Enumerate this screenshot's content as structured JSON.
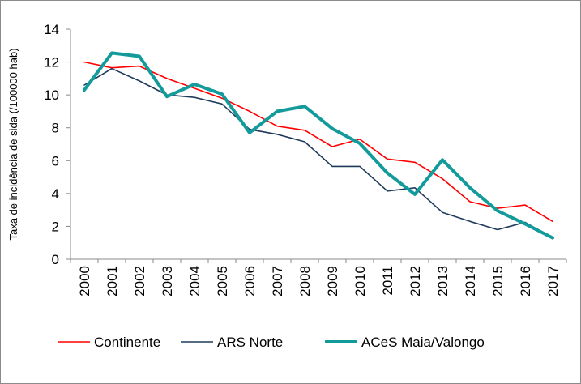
{
  "chart_data": {
    "type": "line",
    "title": "",
    "xlabel": "",
    "ylabel": "Taxa de incidência de sida (/100000 hab)",
    "ylim": [
      0,
      14
    ],
    "yticks": [
      0,
      2,
      4,
      6,
      8,
      10,
      12,
      14
    ],
    "grid": false,
    "legend_position": "bottom",
    "categories": [
      "2000",
      "2001",
      "2002",
      "2003",
      "2004",
      "2005",
      "2006",
      "2007",
      "2008",
      "2009",
      "2010",
      "2011",
      "2012",
      "2013",
      "2014",
      "2015",
      "2016",
      "2017"
    ],
    "series": [
      {
        "name": "Continente",
        "color": "#ff0000",
        "width": "thin",
        "values": [
          12.0,
          11.65,
          11.75,
          11.0,
          10.4,
          9.8,
          9.0,
          8.1,
          7.85,
          6.85,
          7.3,
          6.1,
          5.9,
          4.9,
          3.5,
          3.1,
          3.3,
          2.3
        ]
      },
      {
        "name": "ARS Norte",
        "color": "#1f3b5c",
        "width": "thin",
        "values": [
          10.6,
          11.6,
          10.85,
          10.0,
          9.85,
          9.45,
          7.9,
          7.6,
          7.15,
          5.65,
          5.65,
          4.15,
          4.35,
          2.85,
          2.3,
          1.8,
          2.25,
          1.3
        ]
      },
      {
        "name": "ACeS Maia/Valongo",
        "color": "#139a9a",
        "width": "thick",
        "values": [
          10.3,
          12.55,
          12.35,
          9.9,
          10.65,
          10.05,
          7.7,
          9.0,
          9.3,
          7.95,
          7.05,
          5.25,
          3.95,
          6.05,
          4.35,
          2.95,
          2.15,
          1.3
        ]
      }
    ]
  }
}
